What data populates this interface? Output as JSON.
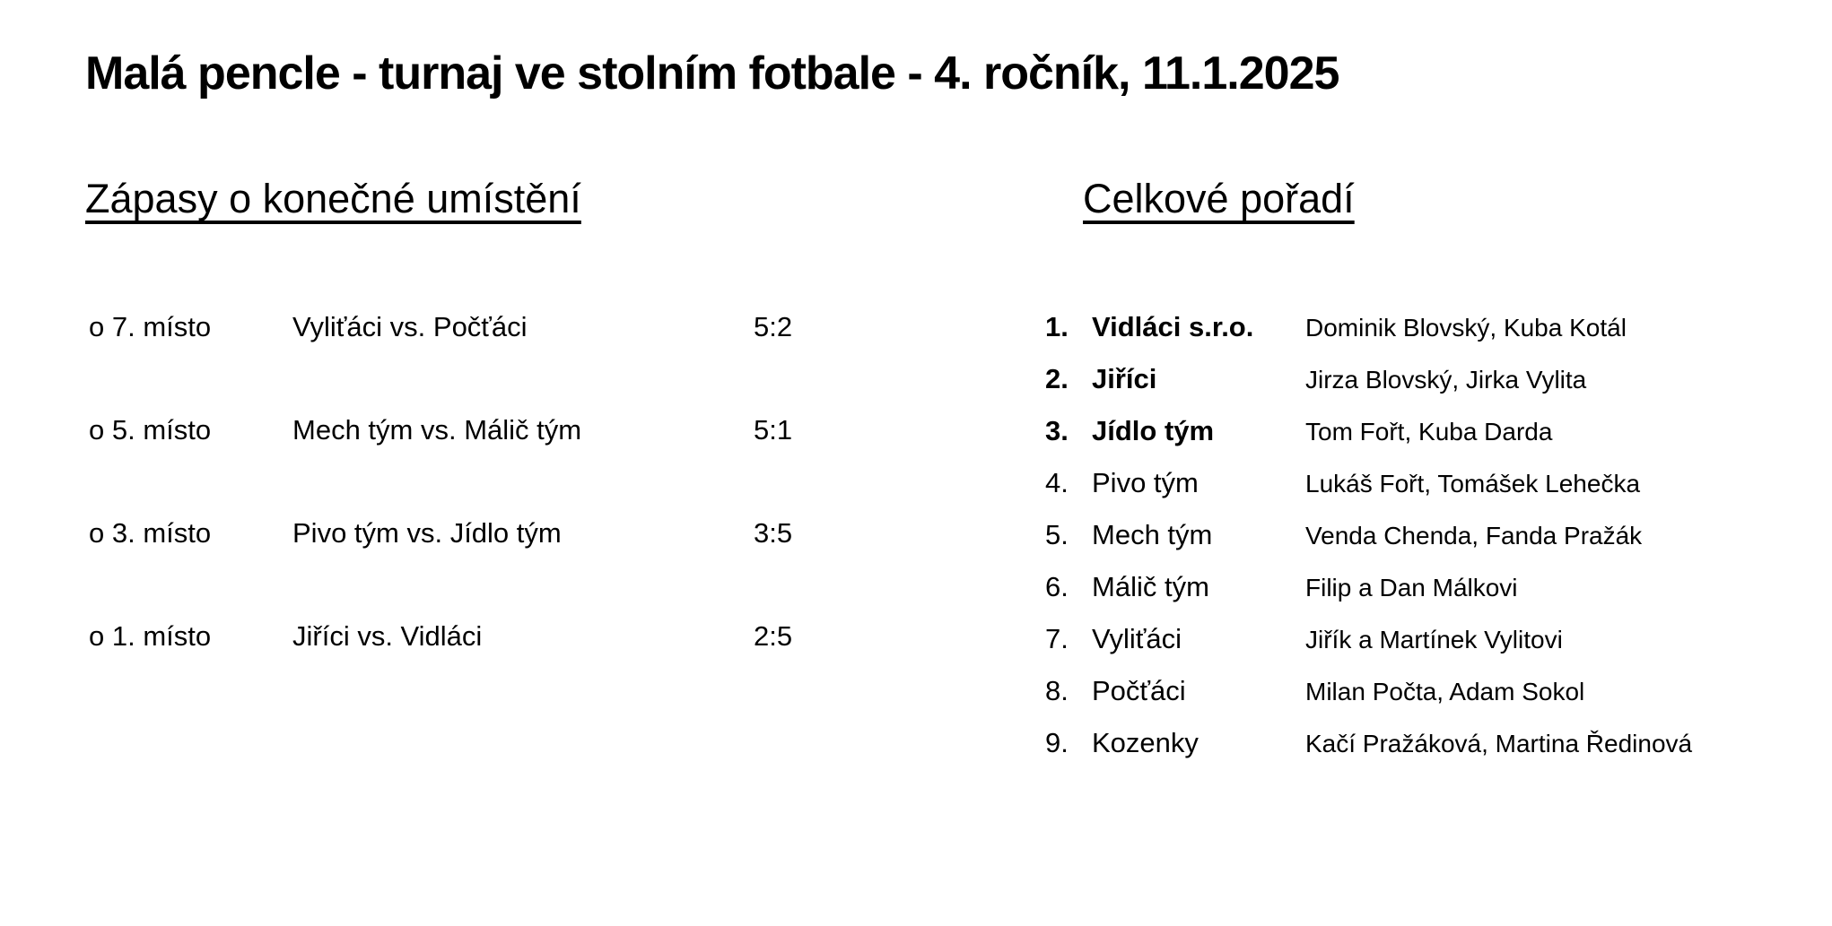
{
  "page": {
    "title": "Malá pencle - turnaj ve stolním fotbale - 4. ročník, 11.1.2025"
  },
  "colors": {
    "text": "#000000",
    "background": "#ffffff"
  },
  "matches_section": {
    "heading": "Zápasy o konečné umístění",
    "rows": [
      {
        "place": "o 7. místo",
        "pairing": "Vyliťáci vs. Počťáci",
        "score": "5:2"
      },
      {
        "place": "o 5. místo",
        "pairing": "Mech tým vs. Málič tým",
        "score": "5:1"
      },
      {
        "place": "o 3. místo",
        "pairing": "Pivo tým vs. Jídlo tým",
        "score": "3:5"
      },
      {
        "place": "o 1. místo",
        "pairing": "Jiříci vs. Vidláci",
        "score": "2:5"
      }
    ]
  },
  "standings_section": {
    "heading": "Celkové pořadí",
    "rows": [
      {
        "rank": "1.",
        "team": "Vidláci s.r.o.",
        "players": "Dominik Blovský, Kuba Kotál",
        "bold": true
      },
      {
        "rank": "2.",
        "team": "Jiříci",
        "players": "Jirza Blovský, Jirka Vylita",
        "bold": true
      },
      {
        "rank": "3.",
        "team": "Jídlo tým",
        "players": "Tom Fořt, Kuba Darda",
        "bold": true
      },
      {
        "rank": "4.",
        "team": "Pivo tým",
        "players": "Lukáš Fořt, Tomášek Lehečka",
        "bold": false
      },
      {
        "rank": "5.",
        "team": "Mech tým",
        "players": "Venda Chenda, Fanda Pražák",
        "bold": false
      },
      {
        "rank": "6.",
        "team": "Málič tým",
        "players": "Filip a Dan Málkovi",
        "bold": false
      },
      {
        "rank": "7.",
        "team": "Vyliťáci",
        "players": "Jiřík a Martínek Vylitovi",
        "bold": false
      },
      {
        "rank": "8.",
        "team": "Počťáci",
        "players": "Milan Počta, Adam Sokol",
        "bold": false
      },
      {
        "rank": "9.",
        "team": "Kozenky",
        "players": "Kačí Pražáková, Martina Ředinová",
        "bold": false
      }
    ]
  }
}
